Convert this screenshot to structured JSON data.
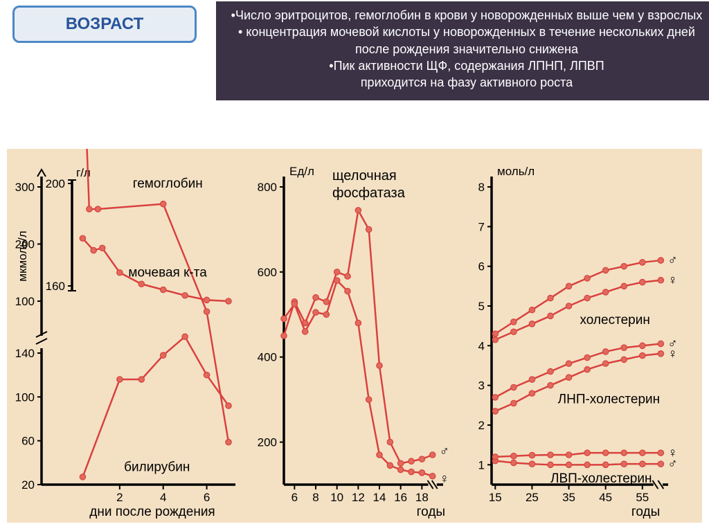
{
  "colors": {
    "badge_bg": "#e7edf4",
    "badge_border": "#4c87c6",
    "badge_text": "#28559b",
    "info_bg": "#3b3246",
    "info_text": "#ffffff",
    "chart_bg": "#f4e1c4",
    "line": "#d9413e",
    "marker_fill": "#e06a5c",
    "ink": "#000000"
  },
  "badge": {
    "text": "ВОЗРАСТ"
  },
  "info": {
    "b1": "•Число эритроцитов, гемоглобин в крови у новорожденных выше чем у взрослых",
    "b2": "• концентрация мочевой кислоты у новорожденных в течение нескольких дней после рождения значительно снижена",
    "b3": "•Пик активности ЩФ, содержания ЛПНП, ЛПВП",
    "b4": "приходится на фазу активного роста"
  },
  "panel1": {
    "xaxis_label": "дни после рождения",
    "left_outer_label": "мкмоль/л",
    "left_inner_label": "г/л",
    "left_outer_ticks": [
      100,
      200,
      300
    ],
    "left_inner_ticks": [
      160,
      200
    ],
    "lower_yticks": [
      20,
      60,
      100,
      140
    ],
    "xticks": [
      2,
      4,
      6
    ],
    "series": {
      "hemoglobin": {
        "label": "гемоглобин",
        "pts": [
          [
            0.2,
            280
          ],
          [
            0.6,
            190
          ],
          [
            1.0,
            190
          ],
          [
            4.0,
            192
          ],
          [
            6.0,
            150
          ],
          [
            7.0,
            99
          ]
        ]
      },
      "uric": {
        "label": "мочевая к-та",
        "pts": [
          [
            0.3,
            210
          ],
          [
            0.8,
            189
          ],
          [
            1.2,
            193
          ],
          [
            2.0,
            150
          ],
          [
            3.0,
            130
          ],
          [
            4.0,
            120
          ],
          [
            5.0,
            110
          ],
          [
            6.0,
            102
          ],
          [
            7.0,
            100
          ]
        ]
      },
      "bilirubin": {
        "label": "билирубин",
        "pts": [
          [
            0.3,
            27
          ],
          [
            2.0,
            116
          ],
          [
            3.0,
            116
          ],
          [
            4.0,
            138
          ],
          [
            5.0,
            155
          ],
          [
            6.0,
            120
          ],
          [
            7.0,
            92
          ]
        ]
      }
    }
  },
  "panel2": {
    "ylabel": "Ед/л",
    "title1": "щелочная",
    "title2": "фосфатаза",
    "xlabel": "годы",
    "yticks": [
      200,
      400,
      600,
      800
    ],
    "xticks": [
      6,
      8,
      10,
      12,
      14,
      16,
      18
    ],
    "male": {
      "pts": [
        [
          5,
          450
        ],
        [
          6,
          530
        ],
        [
          7,
          480
        ],
        [
          8,
          540
        ],
        [
          9,
          530
        ],
        [
          10,
          600
        ],
        [
          11,
          590
        ],
        [
          12,
          745
        ],
        [
          13,
          700
        ],
        [
          14,
          380
        ],
        [
          15,
          200
        ],
        [
          16,
          150
        ],
        [
          17,
          155
        ],
        [
          18,
          160
        ],
        [
          19,
          170
        ]
      ],
      "symbol": "♂"
    },
    "female": {
      "pts": [
        [
          5,
          490
        ],
        [
          6,
          525
        ],
        [
          7,
          460
        ],
        [
          8,
          505
        ],
        [
          9,
          500
        ],
        [
          10,
          580
        ],
        [
          11,
          555
        ],
        [
          12,
          480
        ],
        [
          13,
          300
        ],
        [
          14,
          170
        ],
        [
          15,
          145
        ],
        [
          16,
          135
        ],
        [
          17,
          130
        ],
        [
          18,
          128
        ],
        [
          19,
          120
        ]
      ],
      "symbol": "♀"
    }
  },
  "panel3": {
    "ylabel": "моль/л",
    "xlabel": "годы",
    "yticks": [
      1,
      2,
      3,
      4,
      5,
      6,
      7,
      8
    ],
    "xticks": [
      15,
      25,
      35,
      45,
      55
    ],
    "groups": {
      "chol": {
        "label": "холестерин",
        "m": {
          "pts": [
            [
              15,
              4.3
            ],
            [
              20,
              4.6
            ],
            [
              25,
              4.9
            ],
            [
              30,
              5.2
            ],
            [
              35,
              5.5
            ],
            [
              40,
              5.7
            ],
            [
              45,
              5.9
            ],
            [
              50,
              6.0
            ],
            [
              55,
              6.1
            ],
            [
              60,
              6.15
            ]
          ],
          "symbol": "♂"
        },
        "f": {
          "pts": [
            [
              15,
              4.15
            ],
            [
              20,
              4.35
            ],
            [
              25,
              4.55
            ],
            [
              30,
              4.75
            ],
            [
              35,
              5.0
            ],
            [
              40,
              5.2
            ],
            [
              45,
              5.35
            ],
            [
              50,
              5.5
            ],
            [
              55,
              5.6
            ],
            [
              60,
              5.65
            ]
          ],
          "symbol": "♀"
        }
      },
      "lnp": {
        "label": "ЛНП-холестерин",
        "m": {
          "pts": [
            [
              15,
              2.7
            ],
            [
              20,
              2.95
            ],
            [
              25,
              3.15
            ],
            [
              30,
              3.35
            ],
            [
              35,
              3.55
            ],
            [
              40,
              3.7
            ],
            [
              45,
              3.85
            ],
            [
              50,
              3.95
            ],
            [
              55,
              4.0
            ],
            [
              60,
              4.05
            ]
          ],
          "symbol": "♂"
        },
        "f": {
          "pts": [
            [
              15,
              2.35
            ],
            [
              20,
              2.55
            ],
            [
              25,
              2.8
            ],
            [
              30,
              3.0
            ],
            [
              35,
              3.2
            ],
            [
              40,
              3.4
            ],
            [
              45,
              3.55
            ],
            [
              50,
              3.65
            ],
            [
              55,
              3.75
            ],
            [
              60,
              3.8
            ]
          ],
          "symbol": "♀"
        }
      },
      "lvp": {
        "label": "ЛВП-холестерин",
        "m": {
          "pts": [
            [
              15,
              1.1
            ],
            [
              20,
              1.05
            ],
            [
              25,
              1.02
            ],
            [
              30,
              1.0
            ],
            [
              35,
              1.0
            ],
            [
              40,
              1.0
            ],
            [
              45,
              1.0
            ],
            [
              50,
              1.02
            ],
            [
              55,
              1.02
            ],
            [
              60,
              1.02
            ]
          ],
          "symbol": "♂"
        },
        "f": {
          "pts": [
            [
              15,
              1.2
            ],
            [
              20,
              1.22
            ],
            [
              25,
              1.24
            ],
            [
              30,
              1.25
            ],
            [
              35,
              1.25
            ],
            [
              40,
              1.3
            ],
            [
              45,
              1.3
            ],
            [
              50,
              1.3
            ],
            [
              55,
              1.3
            ],
            [
              60,
              1.3
            ]
          ],
          "symbol": "♀"
        }
      }
    }
  }
}
